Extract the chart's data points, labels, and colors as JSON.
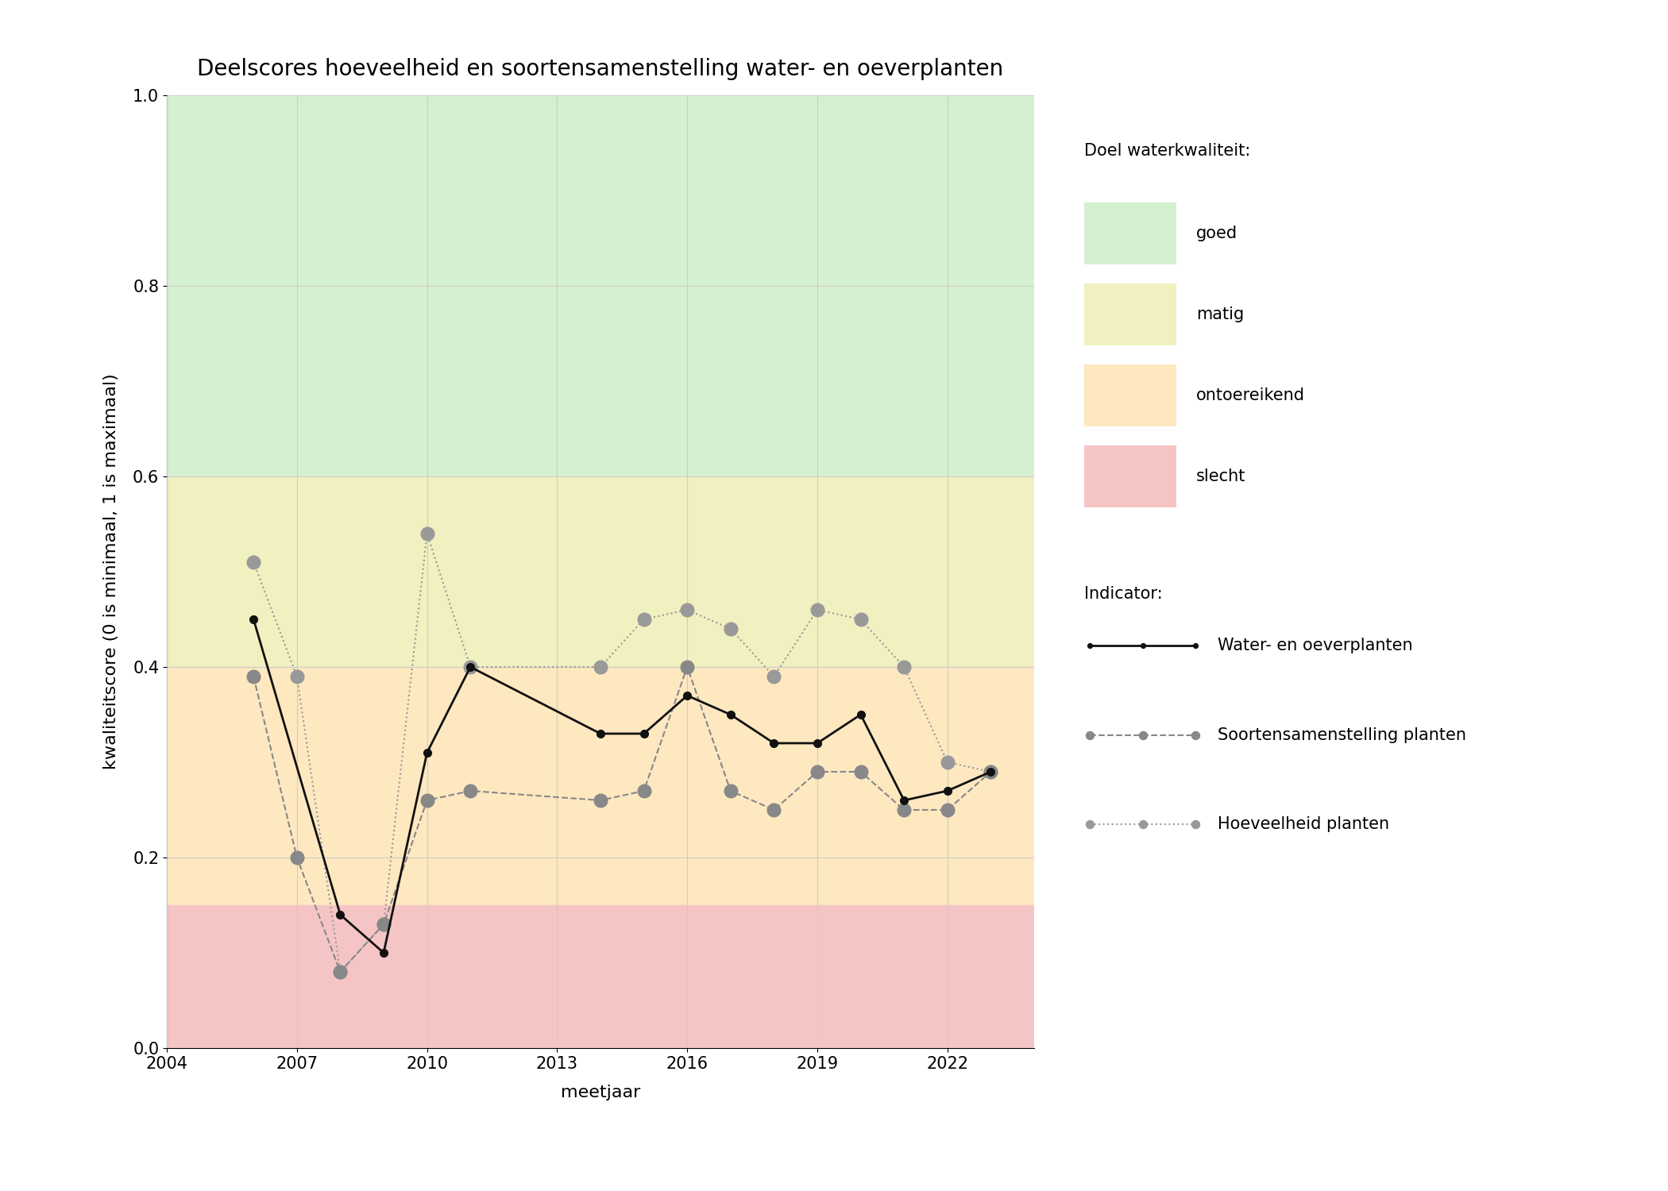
{
  "title": "Deelscores hoeveelheid en soortensamenstelling water- en oeverplanten",
  "xlabel": "meetjaar",
  "ylabel": "kwaliteitscore (0 is minimaal, 1 is maximaal)",
  "xlim": [
    2004,
    2024
  ],
  "ylim": [
    0.0,
    1.0
  ],
  "xticks": [
    2004,
    2007,
    2010,
    2013,
    2016,
    2019,
    2022
  ],
  "yticks": [
    0.0,
    0.2,
    0.4,
    0.6,
    0.8,
    1.0
  ],
  "bg_color": "#ffffff",
  "zone_goed": [
    0.6,
    1.0
  ],
  "zone_matig": [
    0.4,
    0.6
  ],
  "zone_ontoereikend": [
    0.15,
    0.4
  ],
  "zone_slecht": [
    0.0,
    0.15
  ],
  "zone_goed_color": "#d5f0d0",
  "zone_matig_color": "#f0f0c0",
  "zone_ontoereikend_color": "#fde8c0",
  "zone_slecht_color": "#f5c5c5",
  "line1_years": [
    2006,
    2008,
    2009,
    2010,
    2011,
    2014,
    2015,
    2016,
    2017,
    2018,
    2019,
    2020,
    2021,
    2022,
    2023
  ],
  "line1_values": [
    0.45,
    0.14,
    0.1,
    0.31,
    0.4,
    0.33,
    0.33,
    0.37,
    0.35,
    0.32,
    0.32,
    0.35,
    0.26,
    0.27,
    0.29
  ],
  "line1_color": "#111111",
  "line1_label": "Water- en oeverplanten",
  "line1_linestyle": "-",
  "line1_linewidth": 2.0,
  "line1_markersize": 7,
  "line2_years": [
    2006,
    2007,
    2008,
    2009,
    2010,
    2011,
    2014,
    2015,
    2016,
    2017,
    2018,
    2019,
    2020,
    2021,
    2022,
    2023
  ],
  "line2_values": [
    0.39,
    0.2,
    0.08,
    0.13,
    0.26,
    0.27,
    0.26,
    0.27,
    0.4,
    0.27,
    0.25,
    0.29,
    0.29,
    0.25,
    0.25,
    0.29
  ],
  "line2_color": "#888888",
  "line2_label": "Soortensamenstelling planten",
  "line2_linestyle": "--",
  "line2_linewidth": 1.5,
  "line2_markersize": 12,
  "line3_years": [
    2006,
    2007,
    2008,
    2009,
    2010,
    2011,
    2014,
    2015,
    2016,
    2017,
    2018,
    2019,
    2020,
    2021,
    2022,
    2023
  ],
  "line3_values": [
    0.51,
    0.39,
    0.08,
    0.13,
    0.54,
    0.4,
    0.4,
    0.45,
    0.46,
    0.44,
    0.39,
    0.46,
    0.45,
    0.4,
    0.3,
    0.29
  ],
  "line3_color": "#999999",
  "line3_label": "Hoeveelheid planten",
  "line3_linestyle": ":",
  "line3_linewidth": 1.5,
  "line3_markersize": 12,
  "legend_title_doel": "Doel waterkwaliteit:",
  "legend_title_indicator": "Indicator:",
  "legend_labels_doel": [
    "goed",
    "matig",
    "ontoereikend",
    "slecht"
  ],
  "legend_labels_indicator": [
    "Water- en oeverplanten",
    "Soortensamenstelling planten",
    "Hoeveelheid planten"
  ],
  "grid_color": "#cccccc",
  "grid_linewidth": 0.8,
  "title_fontsize": 20,
  "label_fontsize": 16,
  "tick_fontsize": 15,
  "legend_fontsize": 15
}
